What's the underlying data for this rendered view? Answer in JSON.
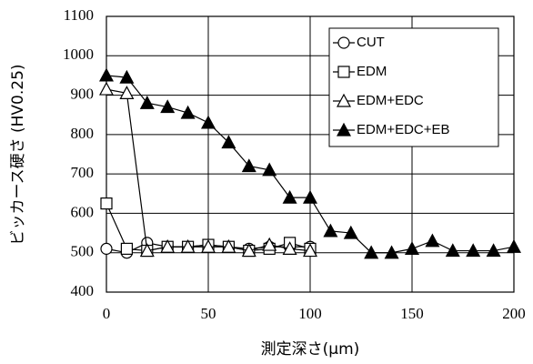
{
  "chart_data": {
    "type": "line",
    "x_label": "測定深さ(μm)",
    "y_label": "ビッカース硬さ (HV0.25)",
    "xlim": [
      0,
      200
    ],
    "xticks": [
      0,
      50,
      100,
      150,
      200
    ],
    "ylim": [
      400,
      1100
    ],
    "yticks": [
      400,
      500,
      600,
      700,
      800,
      900,
      1000,
      1100
    ],
    "grid": true,
    "legend": "top-right",
    "series": [
      {
        "name": "CUT",
        "color": "#000000",
        "marker": "circle",
        "marker_fill": "#ffffff",
        "x": [
          0,
          10,
          20,
          30,
          40,
          50,
          60,
          70,
          80,
          90,
          100
        ],
        "values": [
          510,
          500,
          525,
          515,
          515,
          520,
          515,
          510,
          515,
          515,
          515
        ]
      },
      {
        "name": "EDM",
        "color": "#000000",
        "marker": "square",
        "marker_fill": "#ffffff",
        "x": [
          0,
          10,
          20,
          30,
          40,
          50,
          60,
          70,
          80,
          90,
          100
        ],
        "values": [
          625,
          510,
          505,
          515,
          515,
          520,
          515,
          505,
          510,
          525,
          510
        ]
      },
      {
        "name": "EDM+EDC",
        "color": "#000000",
        "marker": "triangle",
        "marker_fill": "#ffffff",
        "x": [
          0,
          10,
          20,
          30,
          40,
          50,
          60,
          70,
          80,
          90,
          100
        ],
        "values": [
          915,
          905,
          505,
          515,
          515,
          515,
          515,
          505,
          520,
          510,
          505
        ]
      },
      {
        "name": "EDM+EDC+EB",
        "color": "#000000",
        "marker": "triangle",
        "marker_fill": "#000000",
        "x": [
          0,
          10,
          20,
          30,
          40,
          50,
          60,
          70,
          80,
          90,
          100,
          110,
          120,
          130,
          140,
          150,
          160,
          170,
          180,
          190,
          200
        ],
        "values": [
          950,
          945,
          880,
          870,
          855,
          830,
          780,
          720,
          710,
          640,
          640,
          555,
          550,
          500,
          500,
          510,
          530,
          505,
          505,
          505,
          515
        ]
      }
    ]
  }
}
